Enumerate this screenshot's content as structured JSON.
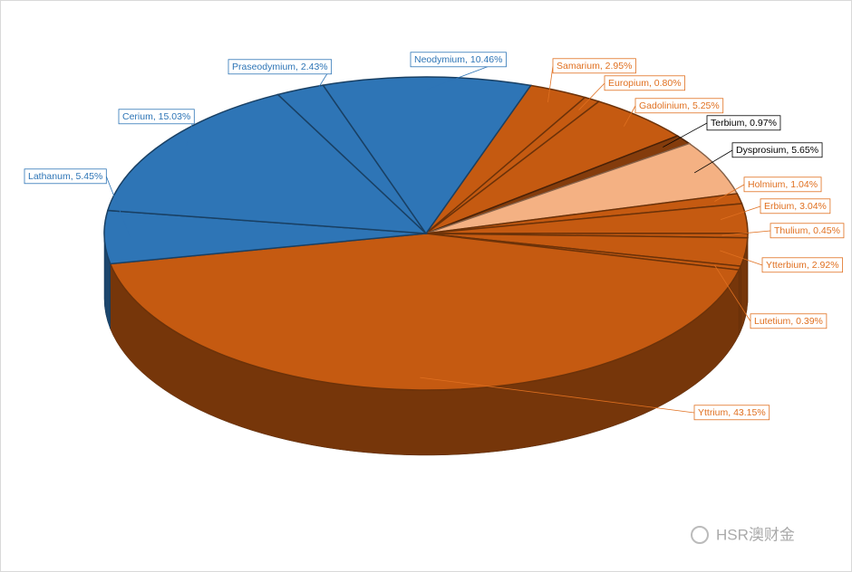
{
  "chart_data": {
    "type": "pie3d",
    "value_labels": [
      "Samarium, 2.95%",
      "Europium, 0.80%",
      "Gadolinium, 5.25%",
      "Terbium, 0.97%",
      "Dysprosium, 5.65%",
      "Holmium, 1.04%",
      "Erbium, 3.04%",
      "Thulium, 0.45%",
      "Ytterbium, 2.92%",
      "Lutetium, 0.39%",
      "Yttrium, 43.15%",
      "Lathanum, 5.45%",
      "Cerium, 15.03%",
      "Praseodymium, 2.43%",
      "Neodymium, 10.46%"
    ],
    "values": [
      2.95,
      0.8,
      5.25,
      0.97,
      5.65,
      1.04,
      3.04,
      0.45,
      2.92,
      0.39,
      43.15,
      5.45,
      15.03,
      2.43,
      10.46
    ],
    "colors": [
      "#c55a11",
      "#c55a11",
      "#c55a11",
      "#843c0c",
      "#f4b183",
      "#c55a11",
      "#c55a11",
      "#c55a11",
      "#c55a11",
      "#c55a11",
      "#c55a11",
      "#2e75b6",
      "#2e75b6",
      "#2e75b6",
      "#2e75b6"
    ],
    "label_colors": [
      "#e07020",
      "#e07020",
      "#e07020",
      "#000000",
      "#000000",
      "#e07020",
      "#e07020",
      "#e07020",
      "#e07020",
      "#e07020",
      "#e07020",
      "#2e75b6",
      "#2e75b6",
      "#2e75b6",
      "#2e75b6"
    ]
  },
  "watermark": "HSR澳财金"
}
